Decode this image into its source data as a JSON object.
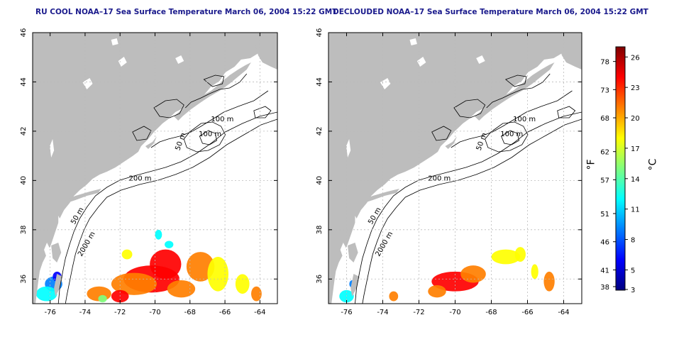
{
  "panels": [
    {
      "id": "left",
      "title": "RU COOL NOAA–17 Sea Surface Temperature March 06, 2004 15:22 GMT",
      "x_ticks": [
        "-76",
        "-74",
        "-72",
        "-70",
        "-68",
        "-66",
        "-64"
      ],
      "y_ticks": [
        "36",
        "38",
        "40",
        "42",
        "44",
        "46"
      ],
      "contour_labels": [
        "100 m",
        "100 m",
        "50 m",
        "200 m",
        "50 m",
        "2000 m"
      ]
    },
    {
      "id": "right",
      "title": "DECLOUDED NOAA–17 Sea Surface Temperature March 06, 2004 15:22 GMT",
      "x_ticks": [
        "-76",
        "-74",
        "-72",
        "-70",
        "-68",
        "-66",
        "-64"
      ],
      "y_ticks": [
        "36",
        "38",
        "40",
        "42",
        "44",
        "46"
      ],
      "contour_labels": [
        "100 m",
        "100 m",
        "50 m",
        "200 m",
        "50 m",
        "2000 m"
      ]
    }
  ],
  "map_extent": {
    "lon": [
      -77,
      -63
    ],
    "lat": [
      35,
      46
    ]
  },
  "colorbar": {
    "fahrenheit_label": "°F",
    "celsius_label": "°C",
    "fahrenheit_ticks": [
      "78",
      "73",
      "68",
      "62",
      "57",
      "51",
      "46",
      "41",
      "38"
    ],
    "celsius_ticks": [
      "26",
      "23",
      "20",
      "17",
      "14",
      "11",
      "8",
      "5",
      "3"
    ],
    "colors": [
      "#00007f",
      "#0000ff",
      "#007fff",
      "#00ffff",
      "#7fff7f",
      "#ffff00",
      "#ff7f00",
      "#ff0000",
      "#7f0000"
    ]
  },
  "colors": {
    "land": "#bdbdbd",
    "ocean": "#ffffff",
    "contour": "#000000",
    "grid": "#bbbbbb",
    "title": "#1a1a8c"
  }
}
